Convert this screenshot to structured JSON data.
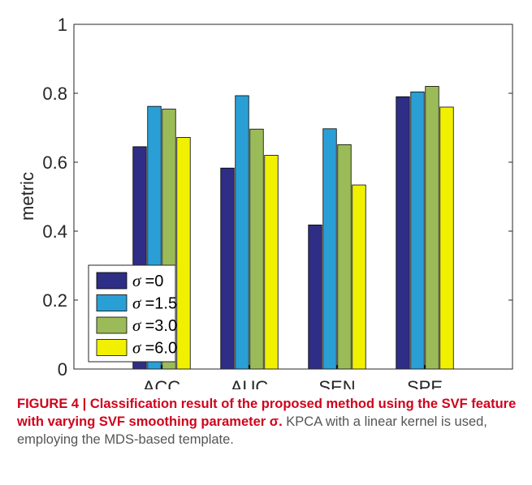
{
  "chart_data": {
    "type": "bar",
    "categories": [
      "ACC",
      "AUC",
      "SEN",
      "SPE"
    ],
    "series": [
      {
        "name": "=0",
        "color": "#2e2e86",
        "values": [
          0.645,
          0.583,
          0.418,
          0.79
        ]
      },
      {
        "name": "=1.5",
        "color": "#2a9fd6",
        "values": [
          0.762,
          0.793,
          0.697,
          0.804
        ]
      },
      {
        "name": "=3.0",
        "color": "#9bbb59",
        "values": [
          0.754,
          0.696,
          0.651,
          0.82
        ]
      },
      {
        "name": "=6.0",
        "color": "#f0f000",
        "values": [
          0.672,
          0.62,
          0.534,
          0.76
        ]
      }
    ],
    "legend_symbol": "σ",
    "ylabel": "metric",
    "ylim": [
      0,
      1
    ],
    "yticks": [
      "0",
      "0.2",
      "0.4",
      "0.6",
      "0.8",
      "1"
    ],
    "ytick_values": [
      0,
      0.2,
      0.4,
      0.6,
      0.8,
      1
    ],
    "legend_position": "bottom-left",
    "grid": false
  },
  "caption": {
    "bold_part": "FIGURE 4 | Classification result of the proposed method using the SVF feature with varying SVF smoothing parameter σ.",
    "plain_part": " KPCA with a linear kernel is used, employing the MDS-based template."
  }
}
